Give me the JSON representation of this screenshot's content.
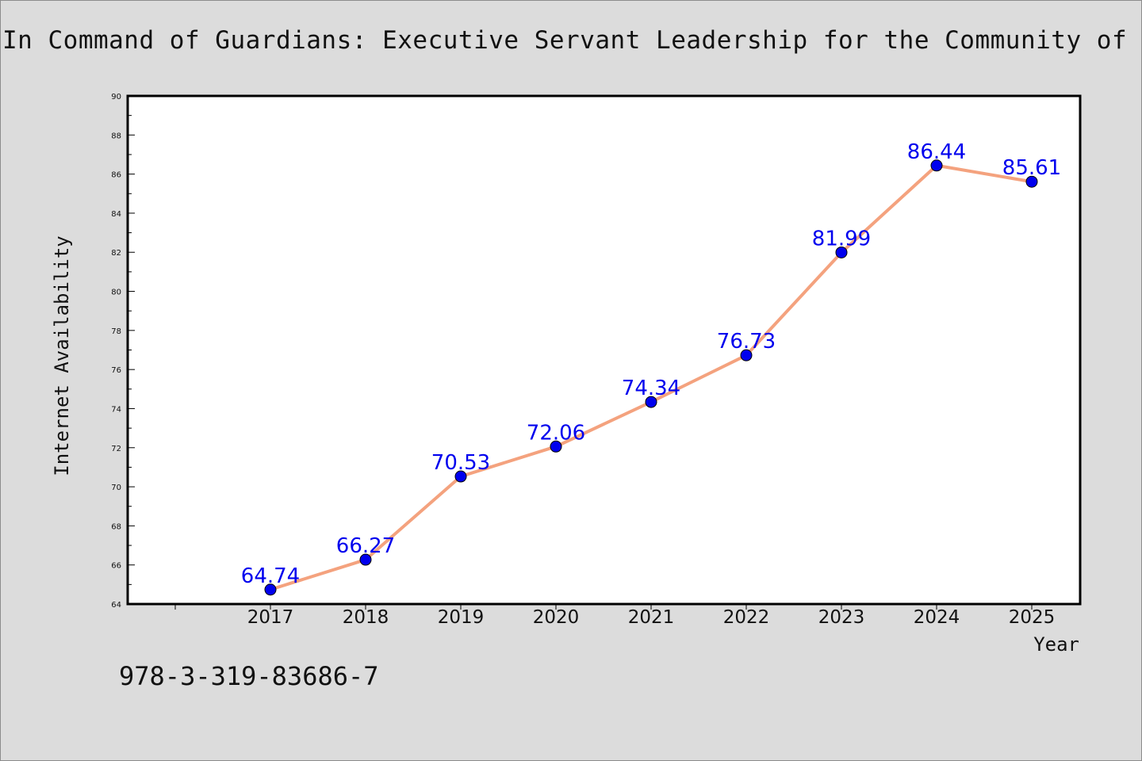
{
  "title": "In Command of Guardians: Executive Servant Leadership for the Community of Responders",
  "footer_code": "978-3-319-83686-7",
  "colors": {
    "background": "#dcdcdc",
    "plot_background": "#ffffff",
    "line": "#f4a27e",
    "marker": "#0000ee",
    "label": "#0000ee"
  },
  "chart_data": {
    "type": "line",
    "title": "In Command of Guardians: Executive Servant Leadership for the Community of Responders",
    "xlabel": "Year",
    "ylabel": "Internet Availability",
    "categories": [
      "2017",
      "2018",
      "2019",
      "2020",
      "2021",
      "2022",
      "2023",
      "2024",
      "2025"
    ],
    "series": [
      {
        "values": [
          64.74,
          66.27,
          70.53,
          72.06,
          74.34,
          76.73,
          81.99,
          86.44,
          85.61
        ]
      }
    ],
    "data_labels": [
      "64.74",
      "66.27",
      "70.53",
      "72.06",
      "74.34",
      "76.73",
      "81.99",
      "86.44",
      "85.61"
    ],
    "ylim": [
      64,
      90
    ],
    "yticks": [
      "64",
      "66",
      "68",
      "70",
      "72",
      "74",
      "76",
      "78",
      "80",
      "82",
      "84",
      "86",
      "88",
      "90"
    ],
    "grid": false,
    "legend": "none"
  }
}
